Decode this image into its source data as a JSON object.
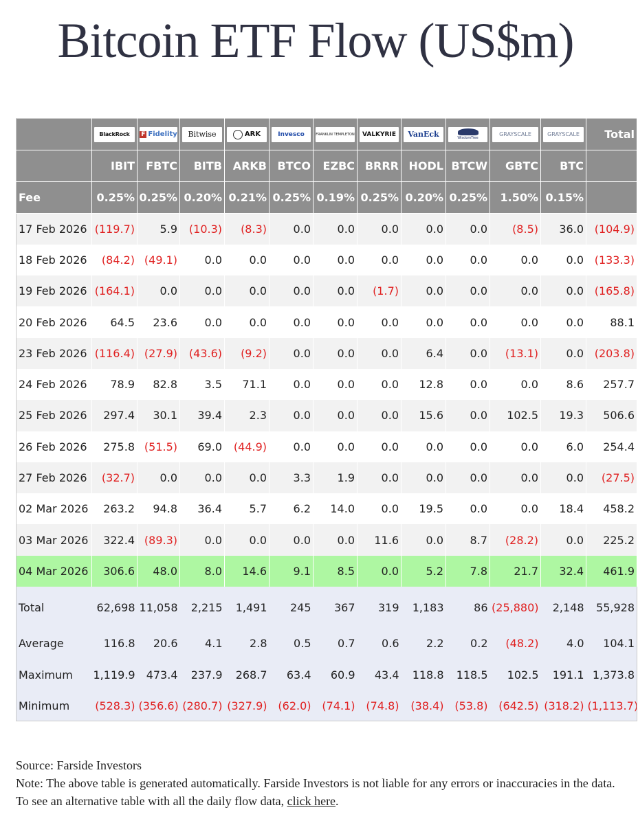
{
  "title": "Bitcoin ETF Flow (US$m)",
  "issuers": [
    "BlackRock",
    "Fidelity",
    "Bitwise",
    "ARK",
    "Invesco",
    "FRANKLIN TEMPLETON",
    "VALKYRIE",
    "VanEck",
    "WisdomTree",
    "GRAYSCALE",
    "GRAYSCALE"
  ],
  "total_header": "Total",
  "tickers": [
    "IBIT",
    "FBTC",
    "BITB",
    "ARKB",
    "BTCO",
    "EZBC",
    "BRRR",
    "HODL",
    "BTCW",
    "GBTC",
    "BTC"
  ],
  "fee_label": "Fee",
  "fees": [
    "0.25%",
    "0.25%",
    "0.20%",
    "0.21%",
    "0.25%",
    "0.19%",
    "0.25%",
    "0.20%",
    "0.25%",
    "1.50%",
    "0.15%"
  ],
  "rows": [
    {
      "date": "17 Feb 2026",
      "values": [
        "(119.7)",
        "5.9",
        "(10.3)",
        "(8.3)",
        "0.0",
        "0.0",
        "0.0",
        "0.0",
        "0.0",
        "(8.5)",
        "36.0",
        "(104.9)"
      ]
    },
    {
      "date": "18 Feb 2026",
      "values": [
        "(84.2)",
        "(49.1)",
        "0.0",
        "0.0",
        "0.0",
        "0.0",
        "0.0",
        "0.0",
        "0.0",
        "0.0",
        "0.0",
        "(133.3)"
      ]
    },
    {
      "date": "19 Feb 2026",
      "values": [
        "(164.1)",
        "0.0",
        "0.0",
        "0.0",
        "0.0",
        "0.0",
        "(1.7)",
        "0.0",
        "0.0",
        "0.0",
        "0.0",
        "(165.8)"
      ]
    },
    {
      "date": "20 Feb 2026",
      "values": [
        "64.5",
        "23.6",
        "0.0",
        "0.0",
        "0.0",
        "0.0",
        "0.0",
        "0.0",
        "0.0",
        "0.0",
        "0.0",
        "88.1"
      ]
    },
    {
      "date": "23 Feb 2026",
      "values": [
        "(116.4)",
        "(27.9)",
        "(43.6)",
        "(9.2)",
        "0.0",
        "0.0",
        "0.0",
        "6.4",
        "0.0",
        "(13.1)",
        "0.0",
        "(203.8)"
      ]
    },
    {
      "date": "24 Feb 2026",
      "values": [
        "78.9",
        "82.8",
        "3.5",
        "71.1",
        "0.0",
        "0.0",
        "0.0",
        "12.8",
        "0.0",
        "0.0",
        "8.6",
        "257.7"
      ]
    },
    {
      "date": "25 Feb 2026",
      "values": [
        "297.4",
        "30.1",
        "39.4",
        "2.3",
        "0.0",
        "0.0",
        "0.0",
        "15.6",
        "0.0",
        "102.5",
        "19.3",
        "506.6"
      ]
    },
    {
      "date": "26 Feb 2026",
      "values": [
        "275.8",
        "(51.5)",
        "69.0",
        "(44.9)",
        "0.0",
        "0.0",
        "0.0",
        "0.0",
        "0.0",
        "0.0",
        "6.0",
        "254.4"
      ]
    },
    {
      "date": "27 Feb 2026",
      "values": [
        "(32.7)",
        "0.0",
        "0.0",
        "0.0",
        "3.3",
        "1.9",
        "0.0",
        "0.0",
        "0.0",
        "0.0",
        "0.0",
        "(27.5)"
      ]
    },
    {
      "date": "02 Mar 2026",
      "values": [
        "263.2",
        "94.8",
        "36.4",
        "5.7",
        "6.2",
        "14.0",
        "0.0",
        "19.5",
        "0.0",
        "0.0",
        "18.4",
        "458.2"
      ]
    },
    {
      "date": "03 Mar 2026",
      "values": [
        "322.4",
        "(89.3)",
        "0.0",
        "0.0",
        "0.0",
        "0.0",
        "11.6",
        "0.0",
        "8.7",
        "(28.2)",
        "0.0",
        "225.2"
      ]
    },
    {
      "date": "04 Mar 2026",
      "values": [
        "306.6",
        "48.0",
        "8.0",
        "14.6",
        "9.1",
        "8.5",
        "0.0",
        "5.2",
        "7.8",
        "21.7",
        "32.4",
        "461.9"
      ],
      "highlight": true
    }
  ],
  "summary": [
    {
      "label": "Total",
      "values": [
        "62,698",
        "11,058",
        "2,215",
        "1,491",
        "245",
        "367",
        "319",
        "1,183",
        "86",
        "(25,880)",
        "2,148",
        "55,928"
      ]
    },
    {
      "label": "Average",
      "values": [
        "116.8",
        "20.6",
        "4.1",
        "2.8",
        "0.5",
        "0.7",
        "0.6",
        "2.2",
        "0.2",
        "(48.2)",
        "4.0",
        "104.1"
      ]
    },
    {
      "label": "Maximum",
      "values": [
        "1,119.9",
        "473.4",
        "237.9",
        "268.7",
        "63.4",
        "60.9",
        "43.4",
        "118.8",
        "118.5",
        "102.5",
        "191.1",
        "1,373.8"
      ]
    },
    {
      "label": "Minimum",
      "values": [
        "(528.3)",
        "(356.6)",
        "(280.7)",
        "(327.9)",
        "(62.0)",
        "(74.1)",
        "(74.8)",
        "(38.4)",
        "(53.8)",
        "(642.5)",
        "(318.2)",
        "(1,113.7)"
      ]
    }
  ],
  "footer": {
    "source": "Source: Farside Investors",
    "note": "Note: The above table is generated automatically. Farside Investors is not liable for any errors or inaccuracies in the data. To see an alternative table with all the daily flow data, ",
    "link_text": "click here",
    "note_end": "."
  },
  "colors": {
    "negative": "#e02020",
    "header_bg": "#8f8f8f",
    "highlight_bg": "#aef7a2",
    "summary_bg": "#e9ecf6"
  }
}
